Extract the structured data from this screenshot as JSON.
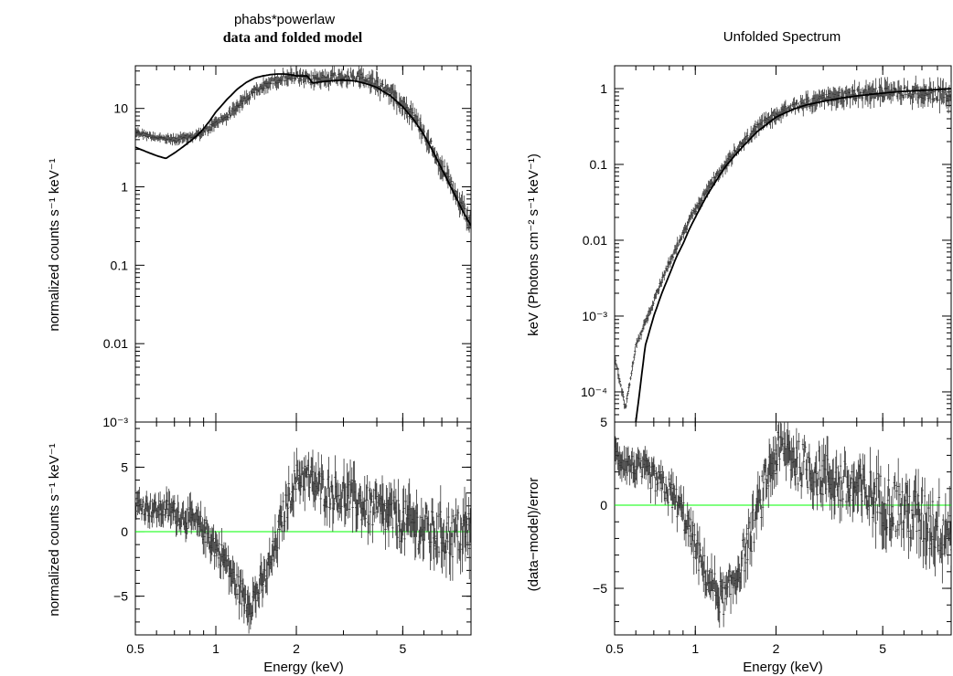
{
  "figure": {
    "left_title_line1": "phabs*powerlaw",
    "left_title_line2": "data and folded model",
    "right_title": "Unfolded Spectrum",
    "colors": {
      "axes": "#000000",
      "data": "#333333",
      "model": "#000000",
      "zero_line": "#00ff00"
    }
  },
  "chart_data": [
    {
      "type": "scatter",
      "panel": "left-top",
      "title": "phabs*powerlaw",
      "subtitle": "data and folded model",
      "xlabel": "Energy (keV)",
      "ylabel": "normalized counts s⁻¹ keV⁻¹",
      "xscale": "log",
      "yscale": "log",
      "xlim": [
        0.5,
        9.0
      ],
      "ylim": [
        0.001,
        35
      ],
      "yticks": [
        {
          "value": 10,
          "label": "10"
        },
        {
          "value": 1,
          "label": "1"
        },
        {
          "value": 0.1,
          "label": "0.1"
        },
        {
          "value": 0.01,
          "label": "0.01"
        },
        {
          "value": 0.001,
          "label": "10⁻³"
        }
      ],
      "series": [
        {
          "role": "data",
          "x": [
            0.5,
            0.55,
            0.6,
            0.65,
            0.7,
            0.75,
            0.8,
            0.85,
            0.9,
            0.95,
            1.0,
            1.1,
            1.2,
            1.3,
            1.4,
            1.5,
            1.6,
            1.7,
            1.8,
            1.9,
            2.0,
            2.1,
            2.2,
            2.3,
            2.5,
            2.7,
            3.0,
            3.3,
            3.6,
            4.0,
            4.5,
            5.0,
            5.5,
            6.0,
            6.5,
            7.0,
            7.5,
            8.0,
            8.5,
            9.0
          ],
          "y": [
            5.0,
            4.6,
            4.3,
            4.1,
            4.0,
            4.1,
            4.3,
            4.6,
            5.0,
            5.6,
            6.5,
            8.0,
            10.5,
            13.5,
            16.5,
            19.0,
            21.5,
            23.5,
            25.0,
            25.5,
            24.5,
            24.0,
            23.5,
            23.5,
            24.0,
            25.0,
            25.5,
            25.0,
            23.5,
            20.5,
            16.0,
            11.5,
            7.8,
            4.9,
            3.0,
            1.8,
            1.1,
            0.7,
            0.45,
            0.3
          ]
        },
        {
          "role": "model",
          "x": [
            0.5,
            0.55,
            0.6,
            0.65,
            0.7,
            0.75,
            0.8,
            0.85,
            0.9,
            0.95,
            1.0,
            1.1,
            1.2,
            1.3,
            1.4,
            1.5,
            1.6,
            1.7,
            1.8,
            1.9,
            2.0,
            2.1,
            2.2,
            2.3,
            2.5,
            2.7,
            3.0,
            3.3,
            3.6,
            4.0,
            4.5,
            5.0,
            5.5,
            6.0,
            6.5,
            7.0,
            7.5,
            8.0,
            8.5,
            9.0
          ],
          "y": [
            3.2,
            2.8,
            2.5,
            2.3,
            2.7,
            3.2,
            3.8,
            4.5,
            5.5,
            7.0,
            9.0,
            13.0,
            17.5,
            21.5,
            24.5,
            26.0,
            27.0,
            27.5,
            27.5,
            27.0,
            26.0,
            26.0,
            26.0,
            21.0,
            22.0,
            22.5,
            23.0,
            22.5,
            21.0,
            18.5,
            14.5,
            10.5,
            7.2,
            4.6,
            2.8,
            1.7,
            1.05,
            0.68,
            0.45,
            0.32
          ]
        }
      ]
    },
    {
      "type": "scatter",
      "panel": "left-bottom",
      "xlabel": "Energy (keV)",
      "ylabel": "normalized counts s⁻¹ keV⁻¹",
      "xscale": "log",
      "xlim": [
        0.5,
        9.0
      ],
      "ylim": [
        -8,
        8.5
      ],
      "xticks": [
        {
          "value": 0.5,
          "label": "0.5"
        },
        {
          "value": 1,
          "label": "1"
        },
        {
          "value": 2,
          "label": "2"
        },
        {
          "value": 5,
          "label": "5"
        }
      ],
      "yticks": [
        {
          "value": 5,
          "label": "5"
        },
        {
          "value": 0,
          "label": "0"
        },
        {
          "value": -5,
          "label": "−5"
        }
      ],
      "zero_line": 0,
      "series": [
        {
          "role": "residuals",
          "x": [
            0.5,
            0.55,
            0.6,
            0.65,
            0.7,
            0.75,
            0.8,
            0.85,
            0.9,
            0.95,
            1.0,
            1.05,
            1.1,
            1.15,
            1.2,
            1.25,
            1.3,
            1.35,
            1.4,
            1.5,
            1.6,
            1.7,
            1.8,
            1.9,
            2.0,
            2.1,
            2.2,
            2.3,
            2.4,
            2.6,
            2.8,
            3.0,
            3.3,
            3.6,
            4.0,
            4.5,
            5.0,
            5.5,
            6.0,
            6.5,
            7.0,
            7.5,
            8.0,
            8.5,
            9.0
          ],
          "y": [
            2.2,
            1.9,
            1.6,
            1.8,
            1.5,
            1.2,
            1.0,
            0.6,
            0.2,
            -0.5,
            -1.2,
            -1.8,
            -2.5,
            -3.5,
            -4.2,
            -4.8,
            -5.3,
            -5.5,
            -5.0,
            -4.0,
            -2.5,
            -0.5,
            1.5,
            3.0,
            4.0,
            4.5,
            4.2,
            3.8,
            3.5,
            3.2,
            3.0,
            2.8,
            2.5,
            2.0,
            1.6,
            1.2,
            0.8,
            0.5,
            0.2,
            -0.1,
            -0.2,
            -0.3,
            -0.2,
            -0.1,
            0.0
          ]
        }
      ]
    },
    {
      "type": "scatter",
      "panel": "right-top",
      "title": "Unfolded Spectrum",
      "xlabel": "Energy (keV)",
      "ylabel": "keV (Photons cm⁻² s⁻¹ keV⁻¹)",
      "xscale": "log",
      "yscale": "log",
      "xlim": [
        0.5,
        9.0
      ],
      "ylim": [
        4e-05,
        2.0
      ],
      "yticks": [
        {
          "value": 1,
          "label": "1"
        },
        {
          "value": 0.1,
          "label": "0.1"
        },
        {
          "value": 0.01,
          "label": "0.01"
        },
        {
          "value": 0.001,
          "label": "10⁻³"
        },
        {
          "value": 0.0001,
          "label": "10⁻⁴"
        }
      ],
      "series": [
        {
          "role": "data",
          "x": [
            0.5,
            0.52,
            0.55,
            0.58,
            0.6,
            0.65,
            0.7,
            0.75,
            0.8,
            0.85,
            0.9,
            0.95,
            1.0,
            1.1,
            1.2,
            1.3,
            1.4,
            1.5,
            1.7,
            2.0,
            2.3,
            2.6,
            3.0,
            3.5,
            4.0,
            4.5,
            5.0,
            5.5,
            6.0,
            7.0,
            8.0,
            9.0
          ],
          "y": [
            0.0003,
            0.00015,
            6e-05,
            0.0002,
            0.0004,
            0.0008,
            0.0016,
            0.003,
            0.005,
            0.008,
            0.012,
            0.018,
            0.025,
            0.045,
            0.07,
            0.1,
            0.14,
            0.19,
            0.3,
            0.45,
            0.57,
            0.65,
            0.72,
            0.78,
            0.83,
            0.86,
            0.9,
            0.92,
            0.9,
            0.88,
            0.85,
            0.8
          ]
        },
        {
          "role": "model",
          "x": [
            0.6,
            0.62,
            0.65,
            0.7,
            0.75,
            0.8,
            0.85,
            0.9,
            0.95,
            1.0,
            1.1,
            1.2,
            1.3,
            1.4,
            1.5,
            1.7,
            2.0,
            2.3,
            2.6,
            3.0,
            3.5,
            4.0,
            4.5,
            5.0,
            5.5,
            6.0,
            7.0,
            8.0,
            9.0
          ],
          "y": [
            4e-05,
            0.0001,
            0.0004,
            0.001,
            0.002,
            0.0035,
            0.006,
            0.009,
            0.014,
            0.02,
            0.038,
            0.062,
            0.095,
            0.13,
            0.17,
            0.27,
            0.42,
            0.53,
            0.61,
            0.68,
            0.75,
            0.8,
            0.84,
            0.87,
            0.9,
            0.92,
            0.95,
            0.97,
            1.0
          ]
        }
      ]
    },
    {
      "type": "scatter",
      "panel": "right-bottom",
      "xlabel": "Energy (keV)",
      "ylabel": "(data−model)/error",
      "xscale": "log",
      "xlim": [
        0.5,
        9.0
      ],
      "ylim": [
        -7.8,
        5.0
      ],
      "xticks": [
        {
          "value": 0.5,
          "label": "0.5"
        },
        {
          "value": 1,
          "label": "1"
        },
        {
          "value": 2,
          "label": "2"
        },
        {
          "value": 5,
          "label": "5"
        }
      ],
      "yticks": [
        {
          "value": 5,
          "label": "5"
        },
        {
          "value": 0,
          "label": "0"
        },
        {
          "value": -5,
          "label": "−5"
        }
      ],
      "zero_line": 0,
      "series": [
        {
          "role": "residuals",
          "x": [
            0.5,
            0.55,
            0.6,
            0.65,
            0.7,
            0.75,
            0.8,
            0.85,
            0.9,
            0.95,
            1.0,
            1.05,
            1.1,
            1.15,
            1.2,
            1.25,
            1.3,
            1.35,
            1.4,
            1.5,
            1.6,
            1.7,
            1.8,
            1.9,
            2.0,
            2.1,
            2.2,
            2.3,
            2.4,
            2.6,
            2.8,
            3.0,
            3.3,
            3.6,
            4.0,
            4.5,
            5.0,
            5.5,
            6.0,
            6.5,
            7.0,
            7.5,
            8.0,
            8.5,
            9.0
          ],
          "y": [
            3.0,
            2.6,
            2.2,
            2.0,
            1.6,
            1.2,
            0.8,
            0.2,
            -0.5,
            -1.5,
            -2.5,
            -3.5,
            -4.2,
            -4.8,
            -5.2,
            -5.6,
            -5.5,
            -5.0,
            -4.5,
            -3.2,
            -2.0,
            -0.5,
            1.0,
            2.2,
            3.0,
            3.3,
            3.2,
            3.0,
            2.6,
            2.3,
            2.0,
            1.8,
            1.5,
            1.2,
            0.9,
            0.6,
            0.3,
            0.0,
            -0.3,
            -0.6,
            -0.8,
            -1.0,
            -1.2,
            -1.3,
            -1.4
          ]
        }
      ]
    }
  ]
}
